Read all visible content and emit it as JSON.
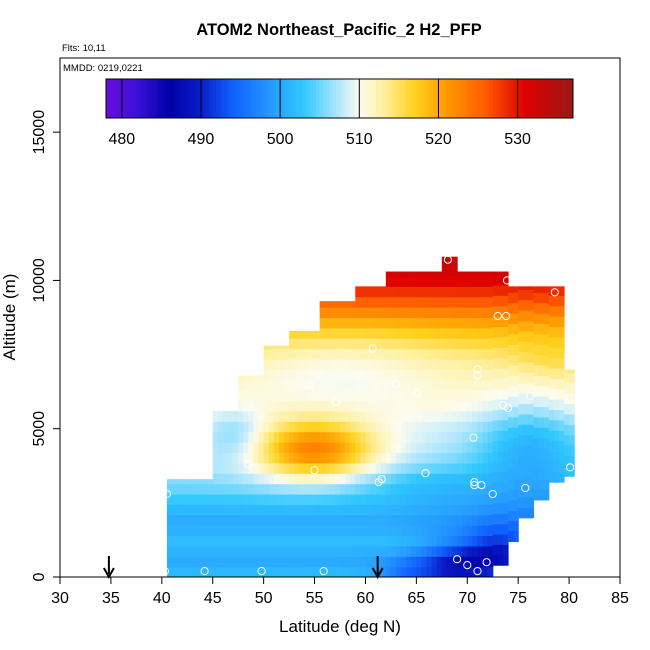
{
  "chart_data": {
    "type": "heatmap",
    "title": "ATOM2 Northeast_Pacific_2 H2_PFP",
    "annotations": {
      "flights": "Flts: 10,11",
      "dates": "MMDD: 0219,0221"
    },
    "xlabel": "Latitude (deg N)",
    "ylabel": "Altitude (m)",
    "xlim": [
      30,
      85
    ],
    "ylim": [
      0,
      17500
    ],
    "xticks": [
      30,
      35,
      40,
      45,
      50,
      55,
      60,
      65,
      70,
      75,
      80,
      85
    ],
    "yticks": [
      0,
      5000,
      10000,
      15000
    ],
    "colorbar": {
      "min": 478,
      "max": 537,
      "ticks": [
        480,
        490,
        500,
        510,
        520,
        530
      ],
      "stops": [
        {
          "v": 478,
          "c": "#6a0dde"
        },
        {
          "v": 482,
          "c": "#3a10d8"
        },
        {
          "v": 486,
          "c": "#0000a8"
        },
        {
          "v": 490,
          "c": "#0a1ec8"
        },
        {
          "v": 494,
          "c": "#1060ff"
        },
        {
          "v": 500,
          "c": "#2aa8ff"
        },
        {
          "v": 503,
          "c": "#30c8ff"
        },
        {
          "v": 507,
          "c": "#a8e4ff"
        },
        {
          "v": 510,
          "c": "#fcfcf0"
        },
        {
          "v": 513,
          "c": "#fff0a0"
        },
        {
          "v": 517,
          "c": "#ffd21e"
        },
        {
          "v": 521,
          "c": "#ff9a00"
        },
        {
          "v": 526,
          "c": "#ff5a00"
        },
        {
          "v": 531,
          "c": "#dd0000"
        },
        {
          "v": 537,
          "c": "#9a1818"
        }
      ]
    },
    "grid_resolution": {
      "lat_step": 0.5,
      "alt_step": 350
    },
    "columns": [
      {
        "lat": [
          40.5,
          45.0
        ],
        "alt": [
          0,
          3300
        ]
      },
      {
        "lat": [
          45.0,
          47.5
        ],
        "alt": [
          0,
          5600
        ]
      },
      {
        "lat": [
          47.5,
          50.0
        ],
        "alt": [
          0,
          6800
        ]
      },
      {
        "lat": [
          50.0,
          52.5
        ],
        "alt": [
          0,
          7800
        ]
      },
      {
        "lat": [
          52.5,
          55.5
        ],
        "alt": [
          0,
          8300
        ]
      },
      {
        "lat": [
          55.5,
          59.0
        ],
        "alt": [
          0,
          9300
        ]
      },
      {
        "lat": [
          59.0,
          62.0
        ],
        "alt": [
          0,
          9800
        ]
      },
      {
        "lat": [
          62.0,
          65.0
        ],
        "alt": [
          0,
          10300
        ]
      },
      {
        "lat": [
          65.0,
          67.5
        ],
        "alt": [
          0,
          10300
        ]
      },
      {
        "lat": [
          67.5,
          69.0
        ],
        "alt": [
          0,
          10800
        ]
      },
      {
        "lat": [
          69.0,
          71.0
        ],
        "alt": [
          0,
          10300
        ]
      },
      {
        "lat": [
          71.0,
          72.5
        ],
        "alt": [
          0,
          10300
        ]
      },
      {
        "lat": [
          72.5,
          74.0
        ],
        "alt": [
          400,
          10300
        ]
      },
      {
        "lat": [
          74.0,
          75.0
        ],
        "alt": [
          1200,
          9800
        ]
      },
      {
        "lat": [
          75.0,
          76.5
        ],
        "alt": [
          2000,
          9800
        ]
      },
      {
        "lat": [
          76.5,
          78.0
        ],
        "alt": [
          2600,
          9800
        ]
      },
      {
        "lat": [
          78.0,
          79.5
        ],
        "alt": [
          3200,
          9800
        ]
      },
      {
        "lat": [
          79.5,
          80.5
        ],
        "alt": [
          3400,
          7000
        ]
      }
    ],
    "field": {
      "layers": [
        {
          "alt": 0,
          "v": 502
        },
        {
          "alt": 600,
          "v": 500
        },
        {
          "alt": 1200,
          "v": 502
        },
        {
          "alt": 1800,
          "v": 500
        },
        {
          "alt": 2400,
          "v": 502
        },
        {
          "alt": 3000,
          "v": 505
        },
        {
          "alt": 3600,
          "v": 507
        },
        {
          "alt": 4300,
          "v": 508
        },
        {
          "alt": 5000,
          "v": 509
        },
        {
          "alt": 5700,
          "v": 511
        },
        {
          "alt": 6400,
          "v": 512
        },
        {
          "alt": 7000,
          "v": 513
        },
        {
          "alt": 7600,
          "v": 515
        },
        {
          "alt": 8200,
          "v": 518
        },
        {
          "alt": 8800,
          "v": 522
        },
        {
          "alt": 9400,
          "v": 527
        },
        {
          "alt": 10000,
          "v": 531
        },
        {
          "alt": 10900,
          "v": 534
        }
      ],
      "north_tilt": 6,
      "anomalies": [
        {
          "lat": 55.0,
          "alt": 4300,
          "sx": 6.0,
          "sy": 1000,
          "amp": 15
        },
        {
          "lat": 57.5,
          "alt": 7200,
          "sx": 10.0,
          "sy": 1600,
          "amp": -3
        },
        {
          "lat": 47.5,
          "alt": 4800,
          "sx": 3.0,
          "sy": 900,
          "amp": -4
        },
        {
          "lat": 69.0,
          "alt": 300,
          "sx": 3.5,
          "sy": 800,
          "amp": -10
        },
        {
          "lat": 73.0,
          "alt": 900,
          "sx": 3.0,
          "sy": 800,
          "amp": -8
        },
        {
          "lat": 64.0,
          "alt": 100,
          "sx": 3.0,
          "sy": 500,
          "amp": -5
        },
        {
          "lat": 66.0,
          "alt": 3200,
          "sx": 8.0,
          "sy": 700,
          "amp": -3
        },
        {
          "lat": 76.0,
          "alt": 4500,
          "sx": 5.0,
          "sy": 1600,
          "amp": -6
        },
        {
          "lat": 78.5,
          "alt": 7300,
          "sx": 4.0,
          "sy": 600,
          "amp": 2
        }
      ]
    },
    "samples": [
      {
        "lat": 40.3,
        "alt": 200
      },
      {
        "lat": 40.5,
        "alt": 2800
      },
      {
        "lat": 44.2,
        "alt": 200
      },
      {
        "lat": 49.8,
        "alt": 200
      },
      {
        "lat": 55.9,
        "alt": 200
      },
      {
        "lat": 45.2,
        "alt": 5800
      },
      {
        "lat": 48.5,
        "alt": 3800
      },
      {
        "lat": 55.0,
        "alt": 3600
      },
      {
        "lat": 57.1,
        "alt": 5900
      },
      {
        "lat": 61.3,
        "alt": 3200
      },
      {
        "lat": 61.6,
        "alt": 3300
      },
      {
        "lat": 63.0,
        "alt": 6500
      },
      {
        "lat": 65.1,
        "alt": 6200
      },
      {
        "lat": 65.9,
        "alt": 3500
      },
      {
        "lat": 60.7,
        "alt": 7700
      },
      {
        "lat": 70.0,
        "alt": 400
      },
      {
        "lat": 71.0,
        "alt": 200
      },
      {
        "lat": 71.9,
        "alt": 500
      },
      {
        "lat": 70.7,
        "alt": 3200
      },
      {
        "lat": 70.7,
        "alt": 3100
      },
      {
        "lat": 71.4,
        "alt": 3100
      },
      {
        "lat": 72.5,
        "alt": 2800
      },
      {
        "lat": 75.7,
        "alt": 3000
      },
      {
        "lat": 70.6,
        "alt": 4700
      },
      {
        "lat": 73.5,
        "alt": 5800
      },
      {
        "lat": 74.0,
        "alt": 5700
      },
      {
        "lat": 76.2,
        "alt": 6100
      },
      {
        "lat": 71.0,
        "alt": 7000
      },
      {
        "lat": 71.0,
        "alt": 6800
      },
      {
        "lat": 73.0,
        "alt": 8800
      },
      {
        "lat": 73.8,
        "alt": 8800
      },
      {
        "lat": 73.9,
        "alt": 10000
      },
      {
        "lat": 78.6,
        "alt": 9600
      },
      {
        "lat": 68.1,
        "alt": 10700
      },
      {
        "lat": 80.1,
        "alt": 3700
      },
      {
        "lat": 69.0,
        "alt": 600
      }
    ],
    "arrows": [
      34.8,
      61.2
    ]
  }
}
